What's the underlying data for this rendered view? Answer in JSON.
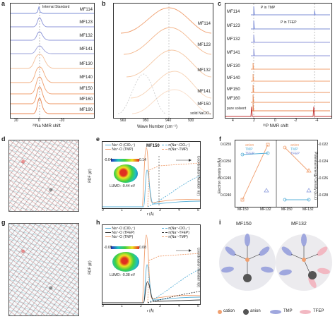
{
  "labels": {
    "a": "a",
    "b": "b",
    "c": "c",
    "d": "d",
    "e": "e",
    "f": "f",
    "g": "g",
    "h": "h",
    "i": "i"
  },
  "panel_a": {
    "annotation": "Internal Standard",
    "xlabel": "²³Na NMR shift",
    "ticks": [
      "20",
      "0",
      "-20"
    ],
    "samples": [
      "MF114",
      "MF123",
      "MF132",
      "MF141",
      "MF130",
      "MF140",
      "MF150",
      "MF160",
      "MF190"
    ]
  },
  "panel_b": {
    "xlabel": "Wave Number (cm⁻¹)",
    "ticks": [
      "960",
      "950",
      "940",
      "930"
    ],
    "samples": [
      "MF114",
      "MF123",
      "MF132",
      "MF141",
      "MF150"
    ],
    "extra_label": "solid NaClO₄"
  },
  "panel_c": {
    "xlabel": "³¹P NMR shift",
    "ticks": [
      "4",
      "2",
      "0",
      "-2",
      "-4"
    ],
    "samples": [
      "MF114",
      "MF123",
      "MF132",
      "MF141",
      "MF130",
      "MF140",
      "MF150",
      "MF160",
      "MF190"
    ],
    "extra_label": "pure solvent",
    "annot_tmp": "P in TMP",
    "annot_tfep": "P in TFEP"
  },
  "panel_e": {
    "legend": [
      "Na⁺-O (ClO₄⁻)",
      "Na⁺-O (TMP)",
      "n(Na⁺-ClO₄⁻)",
      "n(Na⁺-TMP)"
    ],
    "title": "MF150",
    "colorbar": [
      "-0.04",
      "0.14"
    ],
    "lumo": "LUMO: -0.44 eV",
    "xlabel": "r (Å)",
    "ylabel": "RDF g(r)",
    "y2label": "Coordination Number n(r)",
    "xticks": [
      "0",
      "1",
      "2",
      "3",
      "4",
      "5"
    ],
    "yticks": [
      "0",
      "2",
      "4",
      "6",
      "8",
      "10"
    ],
    "y2ticks": [
      "0",
      "2",
      "4",
      "6"
    ]
  },
  "panel_f": {
    "left_legend": [
      "anion",
      "TMP",
      "TFEP"
    ],
    "right_legend": [
      "anion",
      "TMP",
      "TFEP"
    ],
    "ylabel": "Electron Density (e/Å³)",
    "y2label": "Potential Energy Density (a.u.)",
    "yticks": [
      "0.0255",
      "0.0250",
      "0.0245",
      "0.0240"
    ],
    "y2ticks": [
      "-0.022",
      "-0.024",
      "-0.026",
      "-0.028"
    ],
    "xticks": [
      "MF150",
      "MF132",
      "MF150",
      "MF132"
    ]
  },
  "panel_h": {
    "legend": [
      "Na⁺-O (ClO₄⁻)",
      "Na⁺-O (TFEP)",
      "Na⁺-O (TMP)",
      "n(Na⁺-ClO₄⁻)",
      "n(Na⁺-TFEP)",
      "n(Na⁺-TMP)"
    ],
    "colorbar": [
      "-0.08",
      "0.08"
    ],
    "lumo": "LUMO: -0.38 eV",
    "xlabel": "r (Å)",
    "ylabel": "RDF g(r)",
    "y2label": "Coordination Number n(r)",
    "xticks": [
      "0",
      "1",
      "2",
      "3",
      "4",
      "5"
    ],
    "yticks": [
      "0",
      "2",
      "4",
      "6",
      "8",
      "10"
    ],
    "y2ticks": [
      "0",
      "2",
      "4",
      "6"
    ]
  },
  "panel_i": {
    "left_title": "MF150",
    "right_title": "MF132",
    "legend": [
      "cation",
      "anion",
      "TMP",
      "TFEP"
    ]
  },
  "colors": {
    "orange": "#f0a070",
    "blue": "#7b8cd6",
    "cyan": "#5ab0d8",
    "dark": "#333333",
    "red": "#c03030",
    "gray": "#9a9a9a"
  }
}
